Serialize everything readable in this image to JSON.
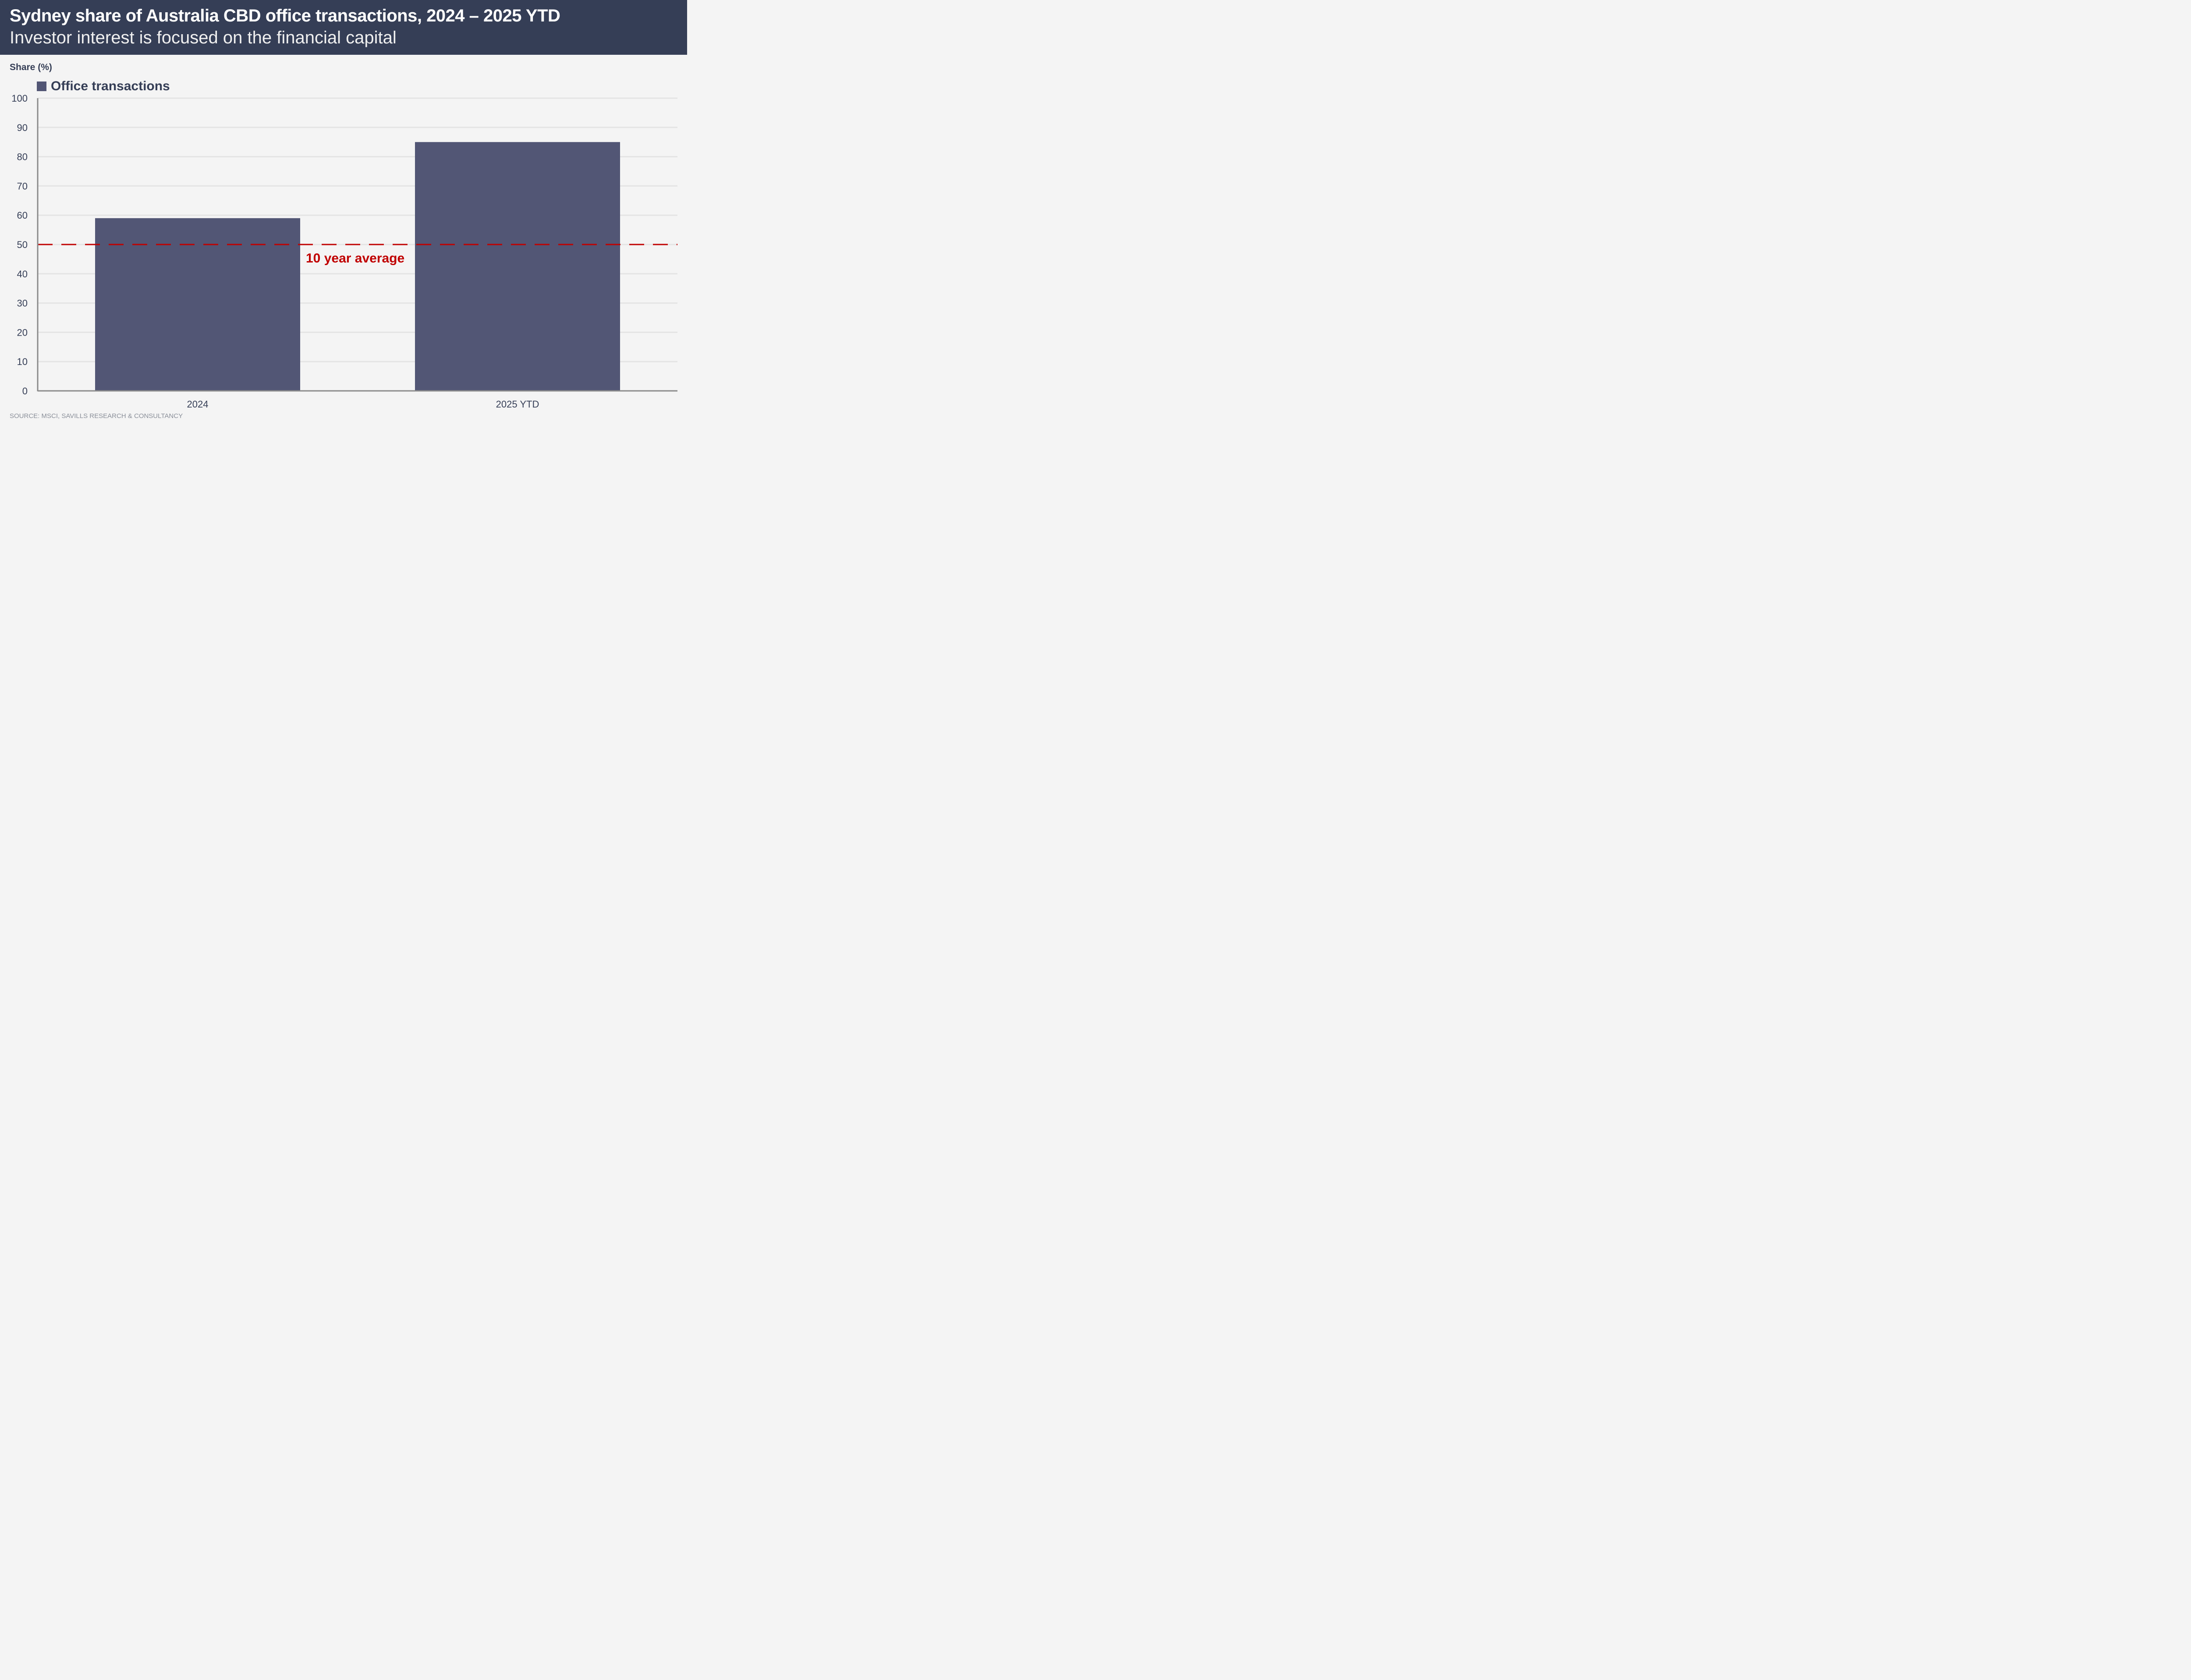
{
  "header": {
    "title": "Sydney share of Australia CBD office transactions, 2024 – 2025 YTD",
    "subtitle": "Investor interest is focused on the financial capital"
  },
  "source": "SOURCE:  MSCI, SAVILLS RESEARCH & CONSULTANCY",
  "colors": {
    "header_bg": "#353e56",
    "bar": "#525675",
    "average_line": "#c00000"
  },
  "chart_data": {
    "type": "bar",
    "ylabel": "Share (%)",
    "categories": [
      "2024",
      "2025 YTD"
    ],
    "series": [
      {
        "name": "Office transactions",
        "values": [
          59,
          85
        ]
      }
    ],
    "ylim": [
      0,
      100
    ],
    "yticks": [
      "0",
      "10",
      "20",
      "30",
      "40",
      "50",
      "60",
      "70",
      "80",
      "90",
      "100"
    ],
    "grid": true,
    "legend": "top-left",
    "reference_line": {
      "value": 50,
      "label": "10 year average",
      "style": "dashed"
    }
  }
}
